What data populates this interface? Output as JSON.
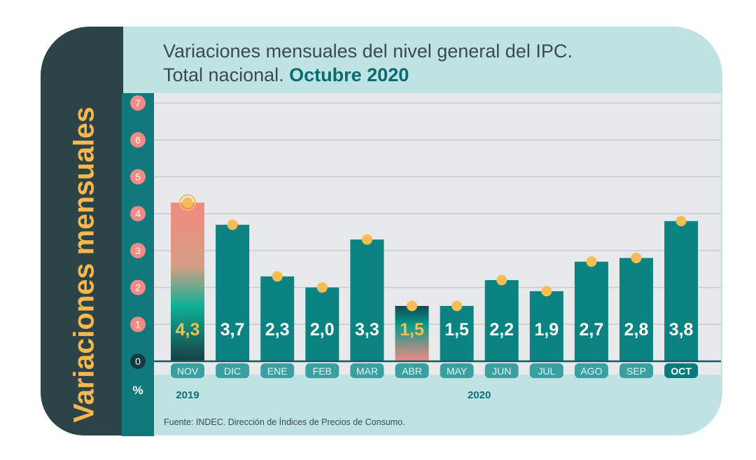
{
  "title": {
    "line1": "Variaciones mensuales del nivel general del IPC.",
    "line2_plain": "Total nacional.",
    "line2_accent": "Octubre 2020"
  },
  "side_label": "Variaciones mensuales",
  "unit": "%",
  "source": "Fuente: INDEC. Dirección de Índices de Precios de Consumo.",
  "colors": {
    "bar": "#0b8380",
    "dot": "#f6bd55",
    "badge": "#f28a88",
    "month_tag": "#3a9fa0",
    "value_label": "#ffffff",
    "value_label_accent": "#f2c14e"
  },
  "chart_data": {
    "type": "bar",
    "title": "Variaciones mensuales del nivel general del IPC. Total nacional. Octubre 2020",
    "ylabel": "Variaciones mensuales",
    "unit": "%",
    "ylim": [
      0,
      7
    ],
    "yticks": [
      0,
      1,
      2,
      3,
      4,
      5,
      6,
      7
    ],
    "grid": true,
    "categories": [
      "NOV",
      "DIC",
      "ENE",
      "FEB",
      "MAR",
      "ABR",
      "MAY",
      "JUN",
      "JUL",
      "AGO",
      "SEP",
      "OCT"
    ],
    "values": [
      4.3,
      3.7,
      2.3,
      2.0,
      3.3,
      1.5,
      1.5,
      2.2,
      1.9,
      2.7,
      2.8,
      3.8
    ],
    "value_labels": [
      "4,3",
      "3,7",
      "2,3",
      "2,0",
      "3,3",
      "1,5",
      "1,5",
      "2,2",
      "1,9",
      "2,7",
      "2,8",
      "3,8"
    ],
    "year_groups": [
      {
        "label": "2019",
        "months": [
          "NOV",
          "DIC"
        ]
      },
      {
        "label": "2020",
        "months": [
          "ENE",
          "FEB",
          "MAR",
          "ABR",
          "MAY",
          "JUN",
          "JUL",
          "AGO",
          "SEP",
          "OCT"
        ]
      }
    ],
    "highlighted": [
      "NOV",
      "ABR"
    ]
  }
}
